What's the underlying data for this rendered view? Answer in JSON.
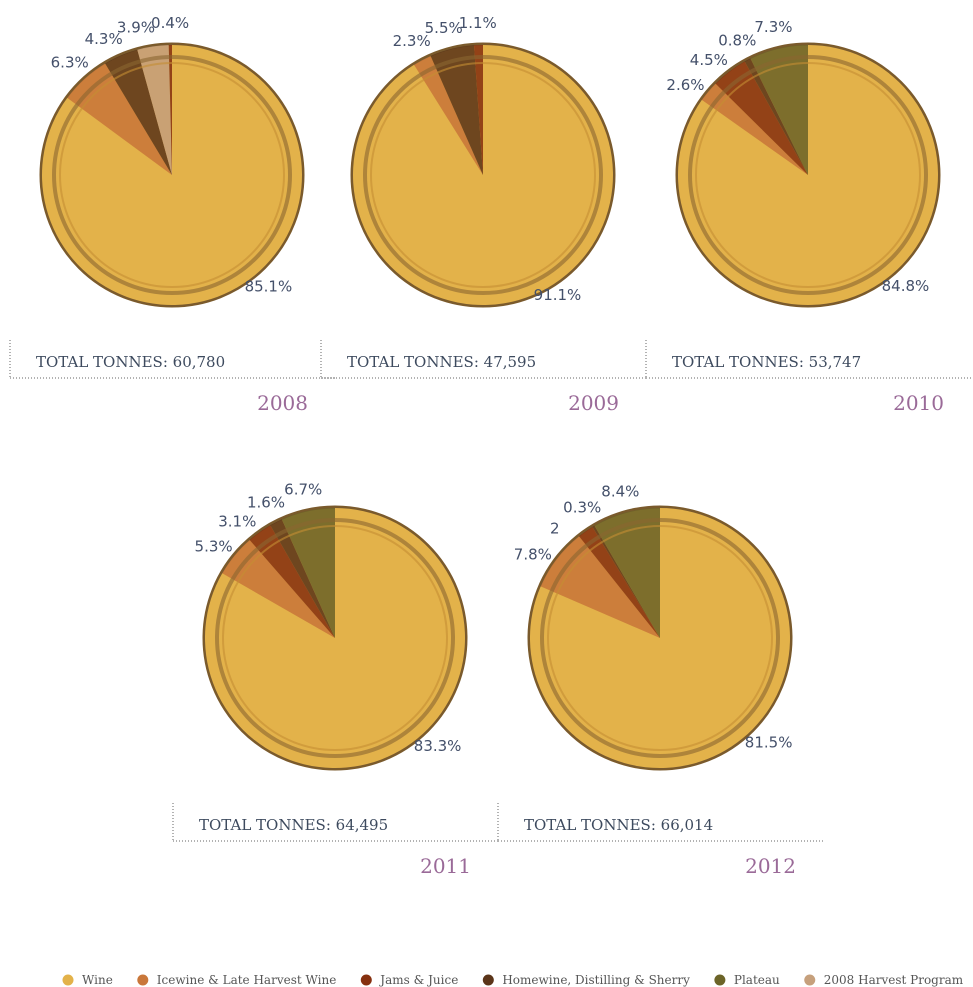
{
  "chart_data": [
    {
      "type": "pie",
      "title": "2008",
      "total": "TOTAL TONNES: 60,780",
      "categories": [
        "Wine",
        "Icewine & Late Harvest Wine",
        "Homewine, Distilling & Sherry",
        "2008 Harvest Program",
        "Jams & Juice"
      ],
      "values": [
        85.1,
        6.3,
        4.3,
        3.9,
        0.4
      ],
      "value_labels": [
        "85.1%",
        "6.3%",
        "4.3%",
        "3.9%",
        "0.4%"
      ]
    },
    {
      "type": "pie",
      "title": "2009",
      "total": "TOTAL TONNES: 47,595",
      "categories": [
        "Wine",
        "Icewine & Late Harvest Wine",
        "Homewine, Distilling & Sherry",
        "Jams & Juice"
      ],
      "values": [
        91.1,
        2.3,
        5.5,
        1.1
      ],
      "value_labels": [
        "91.1%",
        "2.3%",
        "5.5%",
        "1.1%"
      ]
    },
    {
      "type": "pie",
      "title": "2010",
      "total": "TOTAL TONNES: 53,747",
      "categories": [
        "Wine",
        "Icewine & Late Harvest Wine",
        "Jams & Juice",
        "Homewine, Distilling & Sherry",
        "Plateau"
      ],
      "values": [
        84.8,
        2.6,
        4.5,
        0.8,
        7.3
      ],
      "value_labels": [
        "84.8%",
        "2.6%",
        "4.5%",
        "0.8%",
        "7.3%"
      ]
    },
    {
      "type": "pie",
      "title": "2011",
      "total": "TOTAL TONNES: 64,495",
      "categories": [
        "Wine",
        "Icewine & Late Harvest Wine",
        "Jams & Juice",
        "Homewine, Distilling & Sherry",
        "Plateau"
      ],
      "values": [
        83.3,
        5.3,
        3.1,
        1.6,
        6.7
      ],
      "value_labels": [
        "83.3%",
        "5.3%",
        "3.1%",
        "1.6%",
        "6.7%"
      ]
    },
    {
      "type": "pie",
      "title": "2012",
      "total": "TOTAL TONNES: 66,014",
      "categories": [
        "Wine",
        "Icewine & Late Harvest Wine",
        "Jams & Juice",
        "Homewine, Distilling & Sherry",
        "Plateau"
      ],
      "values": [
        81.5,
        7.8,
        2,
        0.3,
        8.4
      ],
      "value_labels": [
        "81.5%",
        "7.8%",
        "2",
        "0.3%",
        "8.4%"
      ]
    }
  ],
  "legend": [
    {
      "name": "Wine",
      "color": "#e3b24a"
    },
    {
      "name": "Icewine & Late Harvest Wine",
      "color": "#c9773a"
    },
    {
      "name": "Jams & Juice",
      "color": "#86300f"
    },
    {
      "name": "Homewine, Distilling & Sherry",
      "color": "#5b3519"
    },
    {
      "name": "Plateau",
      "color": "#6c6428"
    },
    {
      "name": "2008 Harvest Program",
      "color": "#c6a07c"
    }
  ]
}
